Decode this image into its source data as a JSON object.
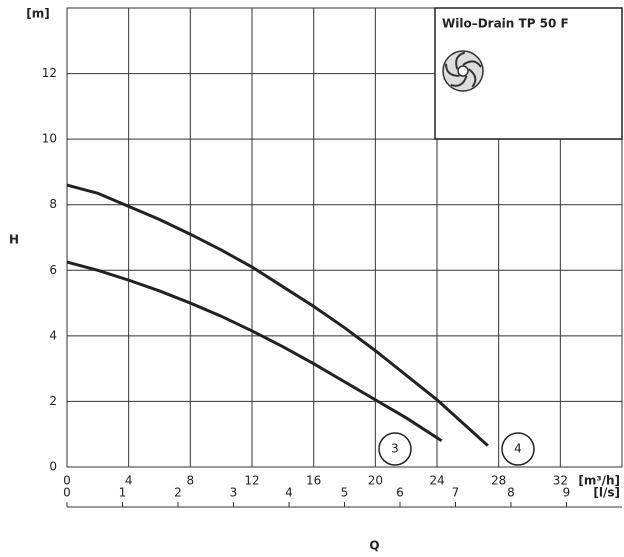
{
  "chart_data": {
    "type": "line",
    "title": "Wilo–Drain TP 50 F",
    "x_label": "Q",
    "y_label": "H",
    "y_unit": "[m]",
    "x_unit": "[m³/h]",
    "x2_unit": "[l/s]",
    "xlim": [
      0,
      36
    ],
    "xticks": [
      0,
      4,
      8,
      12,
      16,
      20,
      24,
      28,
      32
    ],
    "x2lim": [
      0,
      10
    ],
    "x2ticks": [
      0,
      1,
      2,
      3,
      4,
      5,
      6,
      7,
      8,
      9
    ],
    "ylim": [
      0,
      14
    ],
    "yticks": [
      0,
      2,
      4,
      6,
      8,
      10,
      12
    ],
    "grid": true,
    "series": [
      {
        "name": "3",
        "color": "#222222",
        "x": [
          0,
          2,
          4,
          6,
          8,
          10,
          12,
          14,
          16,
          18,
          20,
          22,
          24.3
        ],
        "values": [
          6.25,
          6.0,
          5.7,
          5.37,
          5.0,
          4.6,
          4.15,
          3.67,
          3.15,
          2.6,
          2.05,
          1.5,
          0.8
        ]
      },
      {
        "name": "4",
        "color": "#222222",
        "x": [
          0,
          2,
          4,
          6,
          8,
          10,
          12,
          14,
          16,
          18,
          20,
          22,
          24,
          26,
          27.3
        ],
        "values": [
          8.6,
          8.35,
          7.95,
          7.55,
          7.1,
          6.62,
          6.1,
          5.5,
          4.9,
          4.25,
          3.55,
          2.8,
          2.05,
          1.2,
          0.65
        ]
      }
    ]
  }
}
